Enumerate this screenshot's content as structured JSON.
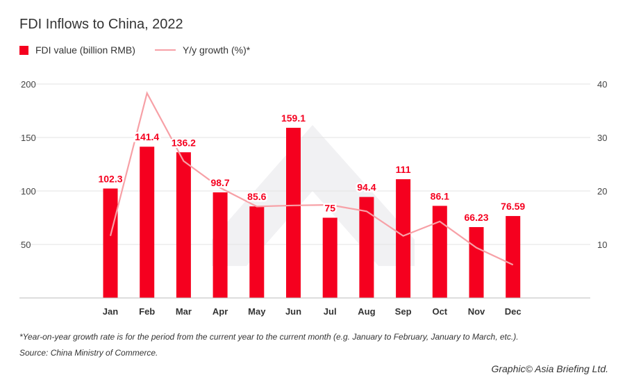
{
  "chart_data": {
    "type": "bar",
    "title": "FDI Inflows to China, 2022",
    "categories": [
      "Jan",
      "Feb",
      "Mar",
      "Apr",
      "May",
      "Jun",
      "Jul",
      "Aug",
      "Sep",
      "Oct",
      "Nov",
      "Dec"
    ],
    "series": [
      {
        "name": "FDI value (billion RMB)",
        "type": "bar",
        "axis": "left",
        "color": "#f5001f",
        "values": [
          102.3,
          141.4,
          136.2,
          98.7,
          85.6,
          159.1,
          75,
          94.4,
          111,
          86.1,
          66.23,
          76.59
        ],
        "labels": [
          "102.3",
          "141.4",
          "136.2",
          "98.7",
          "85.6",
          "159.1",
          "75",
          "94.4",
          "111",
          "86.1",
          "66.23",
          "76.59"
        ]
      },
      {
        "name": "Y/y growth (%)*",
        "type": "line",
        "axis": "right",
        "color": "#f7a0a6",
        "values": [
          11.6,
          38.3,
          25.6,
          20.6,
          17.1,
          17.3,
          17.4,
          16.2,
          11.6,
          14.3,
          9.4,
          6.2
        ]
      }
    ],
    "left_axis": {
      "ylim": [
        0,
        200
      ],
      "ticks": [
        50,
        100,
        150,
        200
      ]
    },
    "right_axis": {
      "ylim": [
        0,
        40
      ],
      "ticks": [
        10,
        20,
        30,
        40
      ]
    },
    "grid": true,
    "legend": "top-left"
  },
  "footnote": "*Year-on-year growth rate is for the period from the current year to the current month (e.g. January to February, January to March, etc.).",
  "source": "Source: China Ministry of Commerce.",
  "credit": "Graphic© Asia Briefing Ltd."
}
